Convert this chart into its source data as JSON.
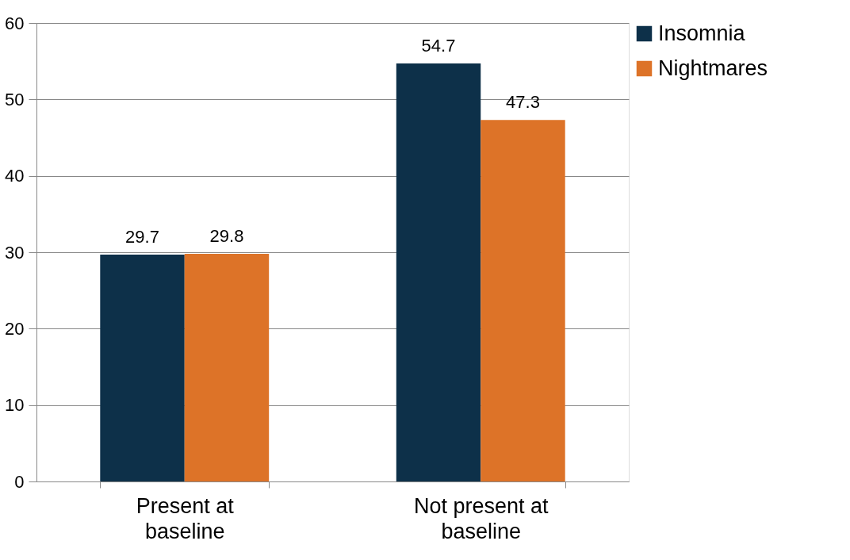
{
  "chart_data": {
    "type": "bar",
    "categories": [
      "Present at baseline",
      "Not present at baseline"
    ],
    "series": [
      {
        "name": "Insomnia",
        "color": "#0d3049",
        "values": [
          29.7,
          54.7
        ]
      },
      {
        "name": "Nightmares",
        "color": "#dd7328",
        "values": [
          29.8,
          47.3
        ]
      }
    ],
    "ylim": [
      0,
      60
    ],
    "yticks": [
      0,
      10,
      20,
      30,
      40,
      50,
      60
    ],
    "grid": "y",
    "legend": "right",
    "data_labels": true
  }
}
